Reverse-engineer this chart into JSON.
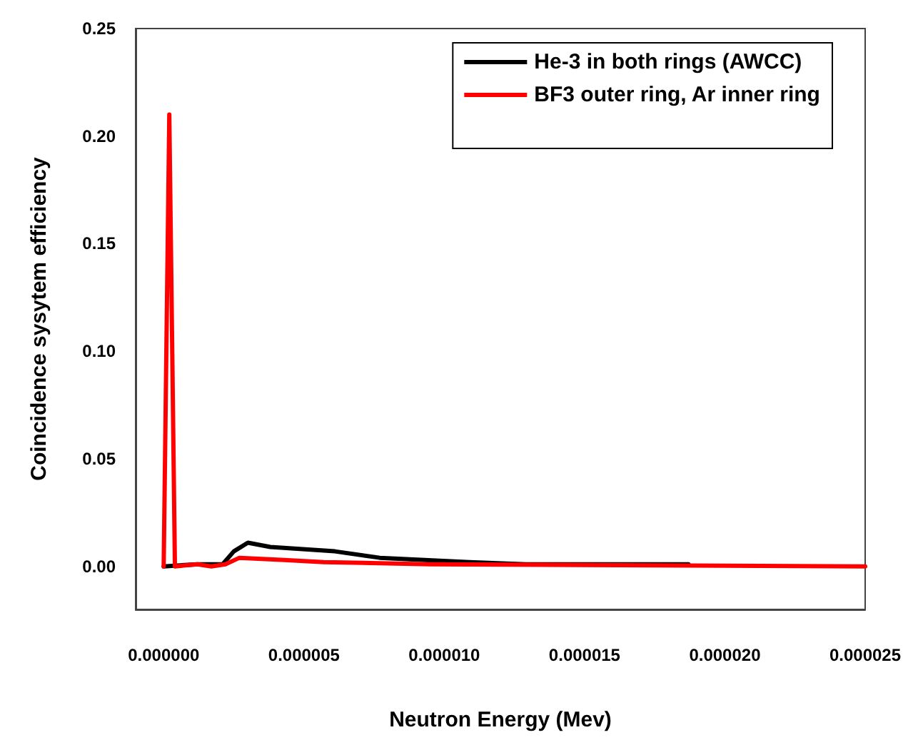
{
  "chart_data": {
    "type": "line",
    "xlabel": "Neutron Energy (Mev)",
    "ylabel": "Coincidence sysytem efficiency",
    "xlim": [
      -1e-06,
      2.5e-05
    ],
    "xticks": [
      {
        "value": 0,
        "label": "0.000000"
      },
      {
        "value": 5e-06,
        "label": "0.000005"
      },
      {
        "value": 1e-05,
        "label": "0.000010"
      },
      {
        "value": 1.5e-05,
        "label": "0.000015"
      },
      {
        "value": 2e-05,
        "label": "0.000020"
      },
      {
        "value": 2.5e-05,
        "label": "0.000025"
      }
    ],
    "ylim": [
      -0.02,
      0.25
    ],
    "yticks": [
      {
        "value": 0,
        "label": "0.00"
      },
      {
        "value": 0.05,
        "label": "0.05"
      },
      {
        "value": 0.1,
        "label": "0.10"
      },
      {
        "value": 0.15,
        "label": "0.15"
      },
      {
        "value": 0.2,
        "label": "0.20"
      },
      {
        "value": 0.25,
        "label": "0.25"
      }
    ],
    "grid": false,
    "legend": "top right",
    "marker": "none",
    "line_style": "solid",
    "series": [
      {
        "name": "He-3 in both rings (AWCC)",
        "color": "#000000",
        "x": [
          0,
          1.2e-06,
          1.7e-06,
          2.1e-06,
          2.5e-06,
          3e-06,
          3.8e-06,
          6.1e-06,
          7.7e-06,
          1.09e-05,
          1.29e-05,
          1.78e-05,
          1.87e-05
        ],
        "values": [
          0,
          0.001,
          0.001,
          0.001,
          0.007,
          0.011,
          0.009,
          0.007,
          0.004,
          0.002,
          0.001,
          0.001,
          0.001
        ]
      },
      {
        "name": "BF3 outer ring, Ar inner ring",
        "color": "#ff0000",
        "x": [
          0,
          1e-07,
          2e-07,
          3e-07,
          4e-07,
          1.2e-06,
          1.7e-06,
          2.2e-06,
          2.7e-06,
          4.3e-06,
          5.7e-06,
          9.5e-06,
          2.5e-05
        ],
        "values": [
          0,
          0.105,
          0.21,
          0.105,
          0,
          0.001,
          0,
          0.001,
          0.004,
          0.003,
          0.002,
          0.001,
          0
        ]
      }
    ]
  }
}
